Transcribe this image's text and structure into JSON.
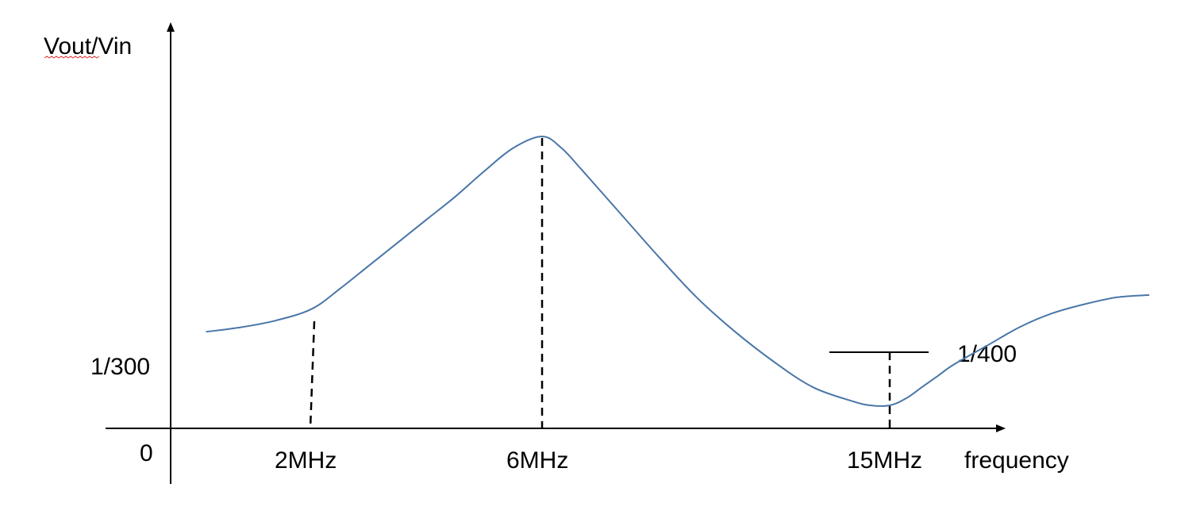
{
  "chart_data": {
    "type": "line",
    "ylabel": "Vout/Vin",
    "xlabel": "frequency",
    "origin_label": "0",
    "x_ticks": [
      {
        "label": "2MHz",
        "x": 2
      },
      {
        "label": "6MHz",
        "x": 6
      },
      {
        "label": "15MHz",
        "x": 15
      }
    ],
    "y_ref_labels": [
      {
        "label": "1/300"
      },
      {
        "label": "1/400"
      }
    ],
    "series": [
      {
        "color": "#4a76a8",
        "points": [
          [
            0.5,
            0.42
          ],
          [
            1.0,
            0.44
          ],
          [
            1.5,
            0.47
          ],
          [
            2.0,
            0.52
          ],
          [
            2.5,
            0.61
          ],
          [
            3.0,
            0.71
          ],
          [
            3.5,
            0.81
          ],
          [
            4.0,
            0.91
          ],
          [
            4.5,
            1.01
          ],
          [
            5.0,
            1.12
          ],
          [
            5.5,
            1.22
          ],
          [
            6.0,
            1.27
          ],
          [
            6.5,
            1.22
          ],
          [
            7.0,
            1.13
          ],
          [
            8.0,
            0.94
          ],
          [
            9.0,
            0.75
          ],
          [
            10.0,
            0.57
          ],
          [
            11.0,
            0.42
          ],
          [
            12.0,
            0.29
          ],
          [
            13.0,
            0.18
          ],
          [
            14.0,
            0.12
          ],
          [
            14.5,
            0.1
          ],
          [
            15.0,
            0.1
          ],
          [
            15.5,
            0.13
          ],
          [
            16.0,
            0.18
          ],
          [
            16.5,
            0.23
          ],
          [
            17.0,
            0.28
          ],
          [
            18.0,
            0.36
          ],
          [
            19.0,
            0.44
          ],
          [
            20.0,
            0.5
          ],
          [
            21.0,
            0.54
          ],
          [
            22.0,
            0.57
          ],
          [
            23.0,
            0.58
          ]
        ]
      }
    ],
    "annotations": [
      {
        "type": "vline-dashed",
        "x": 2
      },
      {
        "type": "vline-dashed",
        "x": 6
      },
      {
        "type": "vline-dashed",
        "x": 15
      },
      {
        "type": "hline",
        "x_range": [
          13.5,
          16.5
        ],
        "y": 0.1,
        "label": "1/400"
      }
    ],
    "grid": false,
    "legend": "none"
  }
}
